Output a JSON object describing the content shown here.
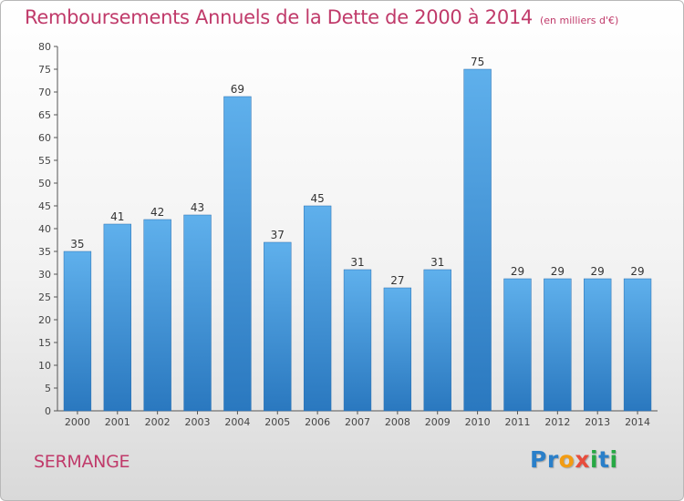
{
  "chart_data": {
    "type": "bar",
    "title": "Remboursements Annuels de la Dette de 2000 à 2014",
    "unit_note": "(en milliers d'€)",
    "categories": [
      "2000",
      "2001",
      "2002",
      "2003",
      "2004",
      "2005",
      "2006",
      "2007",
      "2008",
      "2009",
      "2010",
      "2011",
      "2012",
      "2013",
      "2014"
    ],
    "values": [
      35,
      41,
      42,
      43,
      69,
      37,
      45,
      31,
      27,
      31,
      75,
      29,
      29,
      29,
      29
    ],
    "ylim": [
      0,
      80
    ],
    "yticks": [
      0,
      5,
      10,
      15,
      20,
      25,
      30,
      35,
      40,
      45,
      50,
      55,
      60,
      65,
      70,
      75,
      80
    ],
    "grid": false,
    "bar_color": "#3a8fd6"
  },
  "footer": {
    "commune": "SERMANGE",
    "logo_letters": [
      {
        "char": "P",
        "color": "#2a7fc9"
      },
      {
        "char": "r",
        "color": "#2a7fc9"
      },
      {
        "char": "o",
        "color": "#f39c12"
      },
      {
        "char": "x",
        "color": "#e74c3c"
      },
      {
        "char": "i",
        "color": "#27a844"
      },
      {
        "char": "t",
        "color": "#2a7fc9"
      },
      {
        "char": "i",
        "color": "#27a844"
      }
    ]
  }
}
